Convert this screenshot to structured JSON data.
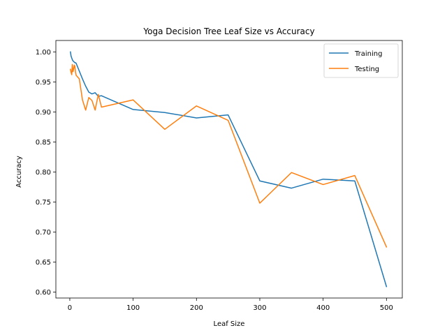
{
  "chart_data": {
    "type": "line",
    "title": "Yoga Decision Tree Leaf Size vs Accuracy",
    "xlabel": "Leaf Size",
    "ylabel": "Accuracy",
    "xlim": [
      -22,
      525
    ],
    "ylim": [
      0.59,
      1.019
    ],
    "xticks": [
      0,
      100,
      200,
      300,
      400,
      500
    ],
    "yticks": [
      0.6,
      0.65,
      0.7,
      0.75,
      0.8,
      0.85,
      0.9,
      0.95,
      1.0
    ],
    "ytick_labels": [
      "0.60",
      "0.65",
      "0.70",
      "0.75",
      "0.80",
      "0.85",
      "0.90",
      "0.95",
      "1.00"
    ],
    "grid": false,
    "legend_position": "upper right",
    "series": [
      {
        "name": "Training",
        "color": "#1f77b4",
        "x": [
          1,
          2,
          3,
          4,
          5,
          6,
          7,
          8,
          9,
          10,
          15,
          20,
          25,
          30,
          35,
          40,
          45,
          50,
          100,
          150,
          200,
          250,
          300,
          350,
          400,
          450,
          500
        ],
        "y": [
          1.0,
          0.993,
          0.99,
          0.987,
          0.985,
          0.984,
          0.983,
          0.982,
          0.982,
          0.981,
          0.968,
          0.955,
          0.943,
          0.933,
          0.93,
          0.932,
          0.926,
          0.927,
          0.904,
          0.899,
          0.89,
          0.895,
          0.785,
          0.773,
          0.788,
          0.785,
          0.609
        ]
      },
      {
        "name": "Testing",
        "color": "#ff7f0e",
        "x": [
          1,
          2,
          3,
          4,
          5,
          6,
          7,
          8,
          9,
          10,
          15,
          20,
          25,
          30,
          35,
          40,
          45,
          50,
          100,
          150,
          200,
          250,
          300,
          350,
          400,
          450,
          500
        ],
        "y": [
          0.971,
          0.966,
          0.962,
          0.979,
          0.967,
          0.971,
          0.978,
          0.976,
          0.966,
          0.961,
          0.955,
          0.92,
          0.903,
          0.924,
          0.919,
          0.903,
          0.929,
          0.908,
          0.92,
          0.871,
          0.91,
          0.886,
          0.748,
          0.799,
          0.779,
          0.794,
          0.675
        ]
      }
    ]
  }
}
